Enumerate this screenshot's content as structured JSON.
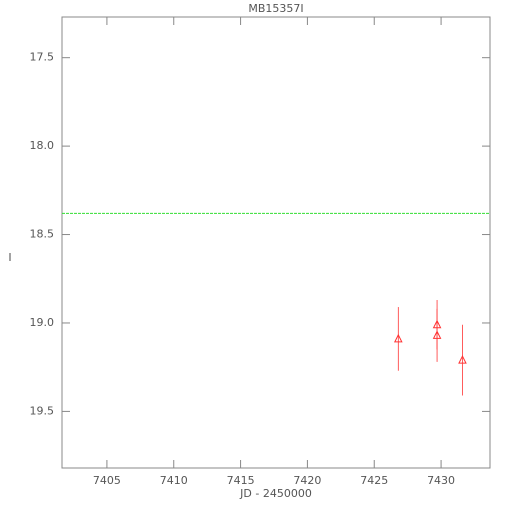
{
  "chart_data": {
    "type": "scatter",
    "title": "MB15357I",
    "x_label": "JD - 2450000",
    "y_label": "I",
    "series": [
      {
        "color": "#ff3333",
        "marker": "triangle",
        "x": [
          7426.8,
          7429.7,
          7429.7,
          7431.6
        ],
        "values": [
          19.09,
          19.01,
          19.07,
          19.21
        ],
        "errors": [
          0.18,
          0.14,
          0.15,
          0.2
        ]
      }
    ],
    "reference_line": {
      "value": 18.38,
      "color": "#33dd33"
    },
    "xlim": [
      7401.64,
      7433.66
    ],
    "xticks": [
      7405,
      7410,
      7415,
      7420,
      7425,
      7430
    ],
    "ylim": [
      19.82,
      17.27
    ],
    "yticks": [
      17.5,
      18.0,
      18.5,
      19.0,
      19.5
    ]
  }
}
